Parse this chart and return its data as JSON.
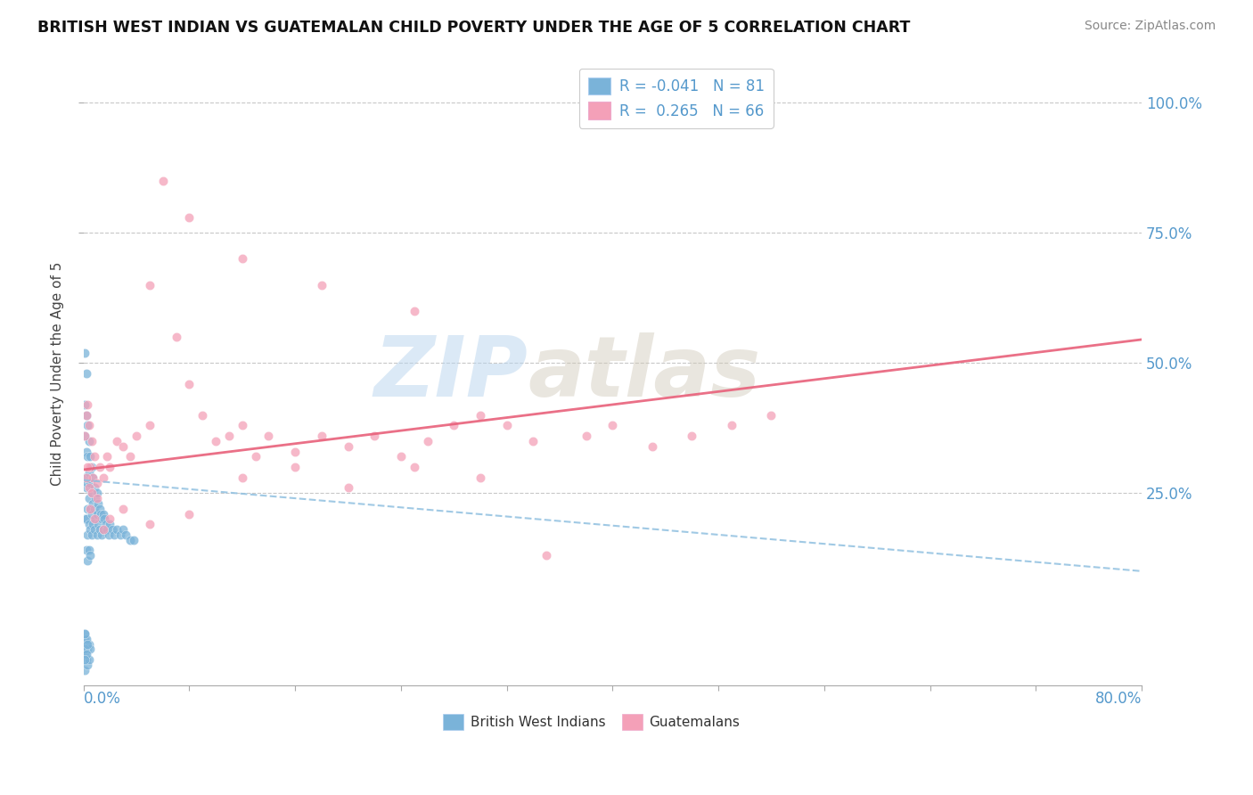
{
  "title": "BRITISH WEST INDIAN VS GUATEMALAN CHILD POVERTY UNDER THE AGE OF 5 CORRELATION CHART",
  "source": "Source: ZipAtlas.com",
  "ylabel": "Child Poverty Under the Age of 5",
  "ytick_labels": [
    "100.0%",
    "75.0%",
    "50.0%",
    "25.0%"
  ],
  "ytick_values": [
    1.0,
    0.75,
    0.5,
    0.25
  ],
  "xlim": [
    0.0,
    0.8
  ],
  "ylim": [
    -0.12,
    1.08
  ],
  "watermark_zip": "ZIP",
  "watermark_atlas": "atlas",
  "legend_R1": "-0.041",
  "legend_N1": "81",
  "legend_R2": "0.265",
  "legend_N2": "66",
  "color_blue": "#7ab3d9",
  "color_pink": "#f4a0b8",
  "color_blue_line": "#90c0e0",
  "color_pink_line": "#e8607a",
  "background_color": "#ffffff",
  "grid_color": "#c8c8c8",
  "bwi_line_y0": 0.275,
  "bwi_line_y1": 0.1,
  "guat_line_y0": 0.295,
  "guat_line_y1": 0.545,
  "bwi_x": [
    0.001,
    0.001,
    0.001,
    0.001,
    0.001,
    0.002,
    0.002,
    0.002,
    0.002,
    0.002,
    0.002,
    0.003,
    0.003,
    0.003,
    0.003,
    0.003,
    0.003,
    0.004,
    0.004,
    0.004,
    0.004,
    0.004,
    0.005,
    0.005,
    0.005,
    0.005,
    0.005,
    0.006,
    0.006,
    0.006,
    0.006,
    0.007,
    0.007,
    0.007,
    0.008,
    0.008,
    0.008,
    0.009,
    0.009,
    0.01,
    0.01,
    0.01,
    0.011,
    0.011,
    0.012,
    0.012,
    0.013,
    0.014,
    0.014,
    0.015,
    0.015,
    0.016,
    0.017,
    0.018,
    0.019,
    0.02,
    0.022,
    0.023,
    0.025,
    0.028,
    0.03,
    0.032,
    0.035,
    0.038,
    0.001,
    0.001,
    0.001,
    0.002,
    0.002,
    0.003,
    0.003,
    0.004,
    0.004,
    0.005,
    0.001,
    0.001,
    0.002,
    0.002,
    0.003,
    0.001,
    0.001
  ],
  "bwi_y": [
    0.52,
    0.42,
    0.36,
    0.28,
    0.2,
    0.48,
    0.4,
    0.33,
    0.26,
    0.2,
    0.14,
    0.38,
    0.32,
    0.27,
    0.22,
    0.17,
    0.12,
    0.35,
    0.29,
    0.24,
    0.19,
    0.14,
    0.32,
    0.27,
    0.22,
    0.18,
    0.13,
    0.3,
    0.25,
    0.21,
    0.17,
    0.28,
    0.23,
    0.19,
    0.26,
    0.22,
    0.18,
    0.24,
    0.2,
    0.25,
    0.21,
    0.17,
    0.23,
    0.19,
    0.22,
    0.18,
    0.21,
    0.2,
    0.17,
    0.21,
    0.18,
    0.2,
    0.19,
    0.18,
    0.17,
    0.19,
    0.18,
    0.17,
    0.18,
    0.17,
    0.18,
    0.17,
    0.16,
    0.16,
    -0.03,
    -0.06,
    -0.09,
    -0.04,
    -0.07,
    -0.05,
    -0.08,
    -0.04,
    -0.07,
    -0.05,
    -0.02,
    -0.05,
    -0.03,
    -0.06,
    -0.04,
    -0.07,
    -0.02
  ],
  "guat_x": [
    0.001,
    0.002,
    0.003,
    0.004,
    0.005,
    0.006,
    0.007,
    0.008,
    0.01,
    0.012,
    0.015,
    0.018,
    0.02,
    0.025,
    0.03,
    0.035,
    0.04,
    0.05,
    0.06,
    0.07,
    0.08,
    0.09,
    0.1,
    0.11,
    0.12,
    0.13,
    0.14,
    0.16,
    0.18,
    0.2,
    0.22,
    0.24,
    0.26,
    0.28,
    0.3,
    0.32,
    0.34,
    0.38,
    0.4,
    0.43,
    0.46,
    0.49,
    0.52,
    0.002,
    0.003,
    0.004,
    0.005,
    0.006,
    0.008,
    0.01,
    0.015,
    0.02,
    0.03,
    0.05,
    0.08,
    0.12,
    0.16,
    0.2,
    0.25,
    0.3,
    0.05,
    0.08,
    0.12,
    0.18,
    0.25,
    0.35
  ],
  "guat_y": [
    0.36,
    0.4,
    0.42,
    0.38,
    0.3,
    0.35,
    0.28,
    0.32,
    0.27,
    0.3,
    0.28,
    0.32,
    0.3,
    0.35,
    0.34,
    0.32,
    0.36,
    0.38,
    0.85,
    0.55,
    0.46,
    0.4,
    0.35,
    0.36,
    0.38,
    0.32,
    0.36,
    0.33,
    0.36,
    0.34,
    0.36,
    0.32,
    0.35,
    0.38,
    0.4,
    0.38,
    0.35,
    0.36,
    0.38,
    0.34,
    0.36,
    0.38,
    0.4,
    0.28,
    0.3,
    0.26,
    0.22,
    0.25,
    0.2,
    0.24,
    0.18,
    0.2,
    0.22,
    0.19,
    0.21,
    0.28,
    0.3,
    0.26,
    0.3,
    0.28,
    0.65,
    0.78,
    0.7,
    0.65,
    0.6,
    0.13
  ]
}
